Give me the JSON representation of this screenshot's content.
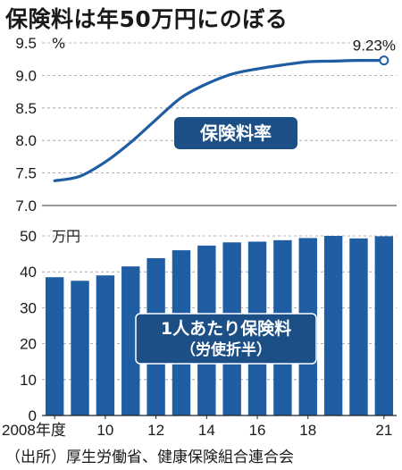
{
  "title": "保険料は年50万円にのぼる",
  "source": "（出所）厚生労働省、健康保険組合連合会",
  "colors": {
    "bar": "#1f5ea3",
    "line": "#1f5ea3",
    "box": "#1c4f86",
    "grid": "#9a9a9a",
    "text": "#1a1a1a"
  },
  "chart_data": [
    {
      "type": "line",
      "label": "保険料率",
      "unit": "%",
      "x": [
        2008,
        2009,
        2010,
        2011,
        2012,
        2013,
        2014,
        2015,
        2016,
        2017,
        2018,
        2019,
        2020,
        2021
      ],
      "values": [
        7.38,
        7.45,
        7.67,
        7.97,
        8.32,
        8.66,
        8.87,
        9.02,
        9.1,
        9.16,
        9.21,
        9.22,
        9.23,
        9.23
      ],
      "ylim": [
        7.0,
        9.5
      ],
      "yticks": [
        "7.0",
        "7.5",
        "8.0",
        "8.5",
        "9.0",
        "9.5"
      ],
      "end_label": "9.23%",
      "grid": true
    },
    {
      "type": "bar",
      "label_line1": "1人あたり保険料",
      "label_line2": "（労使折半）",
      "unit": "万円",
      "x": [
        2008,
        2009,
        2010,
        2011,
        2012,
        2013,
        2014,
        2015,
        2016,
        2017,
        2018,
        2019,
        2020,
        2021
      ],
      "values": [
        38.5,
        37.5,
        39.0,
        41.5,
        43.8,
        46.0,
        47.3,
        48.2,
        48.4,
        48.8,
        49.4,
        50.0,
        49.3,
        49.9
      ],
      "ylim": [
        0,
        50
      ],
      "yticks": [
        "0",
        "10",
        "20",
        "30",
        "40",
        "50"
      ],
      "xtick_labels": [
        "2008年度",
        "10",
        "12",
        "14",
        "16",
        "18",
        "21"
      ],
      "xtick_years": [
        2008,
        2010,
        2012,
        2014,
        2016,
        2018,
        2021
      ],
      "grid": true
    }
  ]
}
